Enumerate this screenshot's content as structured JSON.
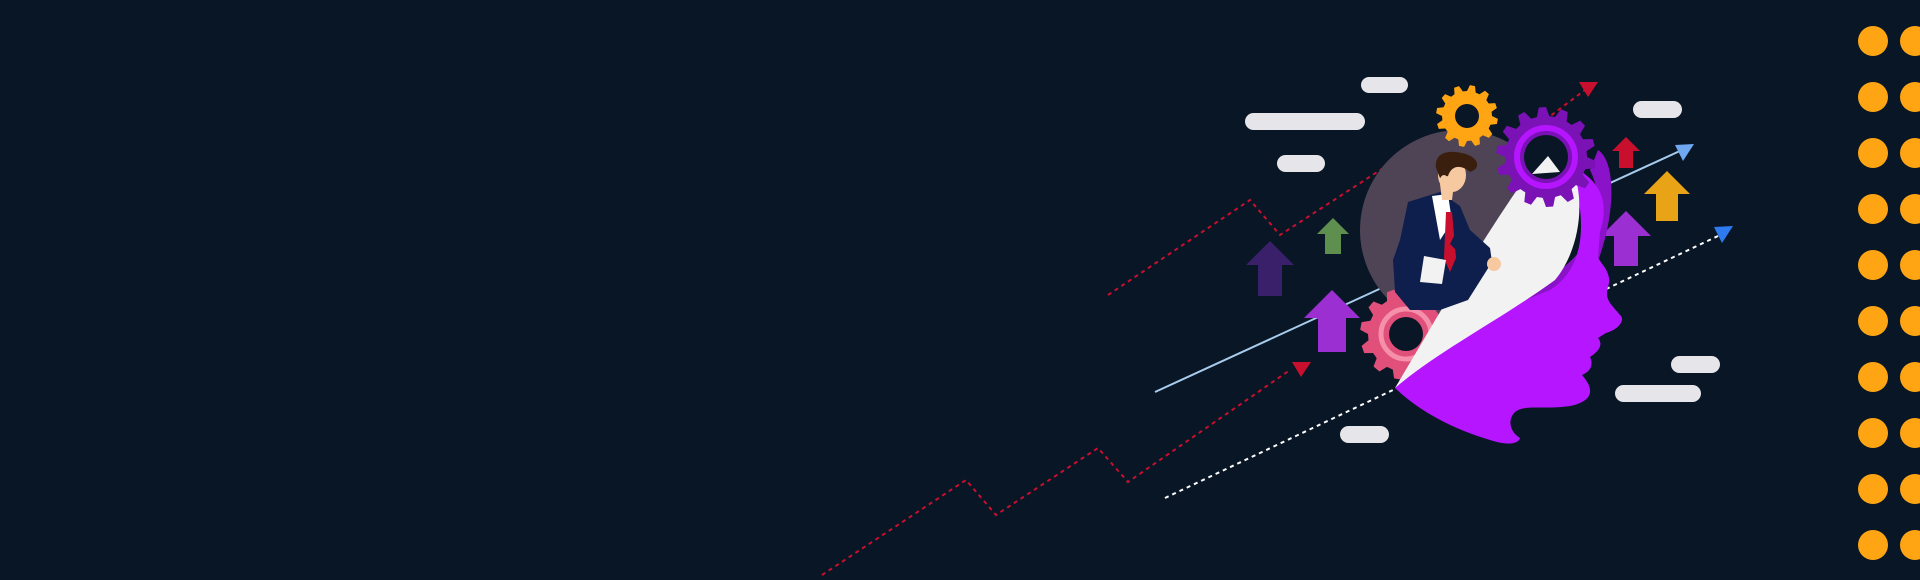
{
  "banner": {
    "background_color": "#081626",
    "accent_colors": {
      "head": "#B515FF",
      "head_shadow": "#8A12C9",
      "dots": "#FFA514",
      "trend_dotted": "#C8102E",
      "trend_line": "#A9CCEC",
      "trend_dotted_white": "#FFFFFF",
      "pill": "#E6E6EA",
      "gear_orange": "#FFA514",
      "gear_purple": "#7A12B5",
      "gear_pink": "#E0507A",
      "suit": "#0E1E4D",
      "tie": "#C8102E",
      "skin": "#F7C9A0",
      "hair": "#3A1F0F",
      "backdrop_circle": "#4E4456"
    },
    "icons": [
      "head-profile-icon",
      "businessman-icon",
      "gear-icon",
      "up-arrow-icon",
      "trend-line-icon",
      "dot-pattern-icon"
    ]
  }
}
